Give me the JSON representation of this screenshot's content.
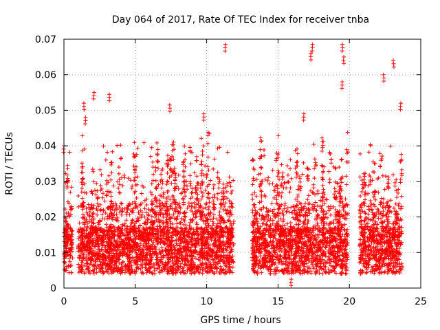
{
  "chart_data": {
    "type": "scatter",
    "title": "Day 064 of 2017, Rate Of TEC Index for receiver tnba",
    "xlabel": "GPS time / hours",
    "ylabel": "ROTI / TECUs",
    "xlim": [
      0,
      25
    ],
    "ylim": [
      0,
      0.07
    ],
    "xticks": [
      0,
      5,
      10,
      15,
      20,
      25
    ],
    "xtick_labels": [
      "0",
      "5",
      "10",
      "15",
      "20",
      "25"
    ],
    "yticks": [
      0,
      0.01,
      0.02,
      0.03,
      0.04,
      0.05,
      0.06,
      0.07
    ],
    "ytick_labels": [
      "0",
      "0.01",
      "0.02",
      "0.03",
      "0.04",
      "0.05",
      "0.06",
      "0.07"
    ],
    "grid": true,
    "marker": "+",
    "color": "#ff0000",
    "coverage_hours": [
      [
        0,
        0.6
      ],
      [
        1.0,
        11.9
      ],
      [
        13.2,
        19.9
      ],
      [
        20.7,
        23.7
      ]
    ],
    "notable_points": [
      {
        "x": 11.3,
        "y": 0.0685
      },
      {
        "x": 17.4,
        "y": 0.0685
      },
      {
        "x": 19.5,
        "y": 0.0685
      },
      {
        "x": 17.3,
        "y": 0.066
      },
      {
        "x": 19.6,
        "y": 0.065
      },
      {
        "x": 23.1,
        "y": 0.064
      },
      {
        "x": 22.4,
        "y": 0.06
      },
      {
        "x": 19.5,
        "y": 0.058
      },
      {
        "x": 2.1,
        "y": 0.055
      },
      {
        "x": 3.2,
        "y": 0.0545
      },
      {
        "x": 1.4,
        "y": 0.052
      },
      {
        "x": 23.6,
        "y": 0.052
      },
      {
        "x": 7.4,
        "y": 0.0515
      },
      {
        "x": 9.8,
        "y": 0.049
      },
      {
        "x": 16.8,
        "y": 0.049
      },
      {
        "x": 1.5,
        "y": 0.048
      },
      {
        "x": 0.0,
        "y": 0.04
      },
      {
        "x": 15.9,
        "y": 0.0025
      }
    ]
  }
}
